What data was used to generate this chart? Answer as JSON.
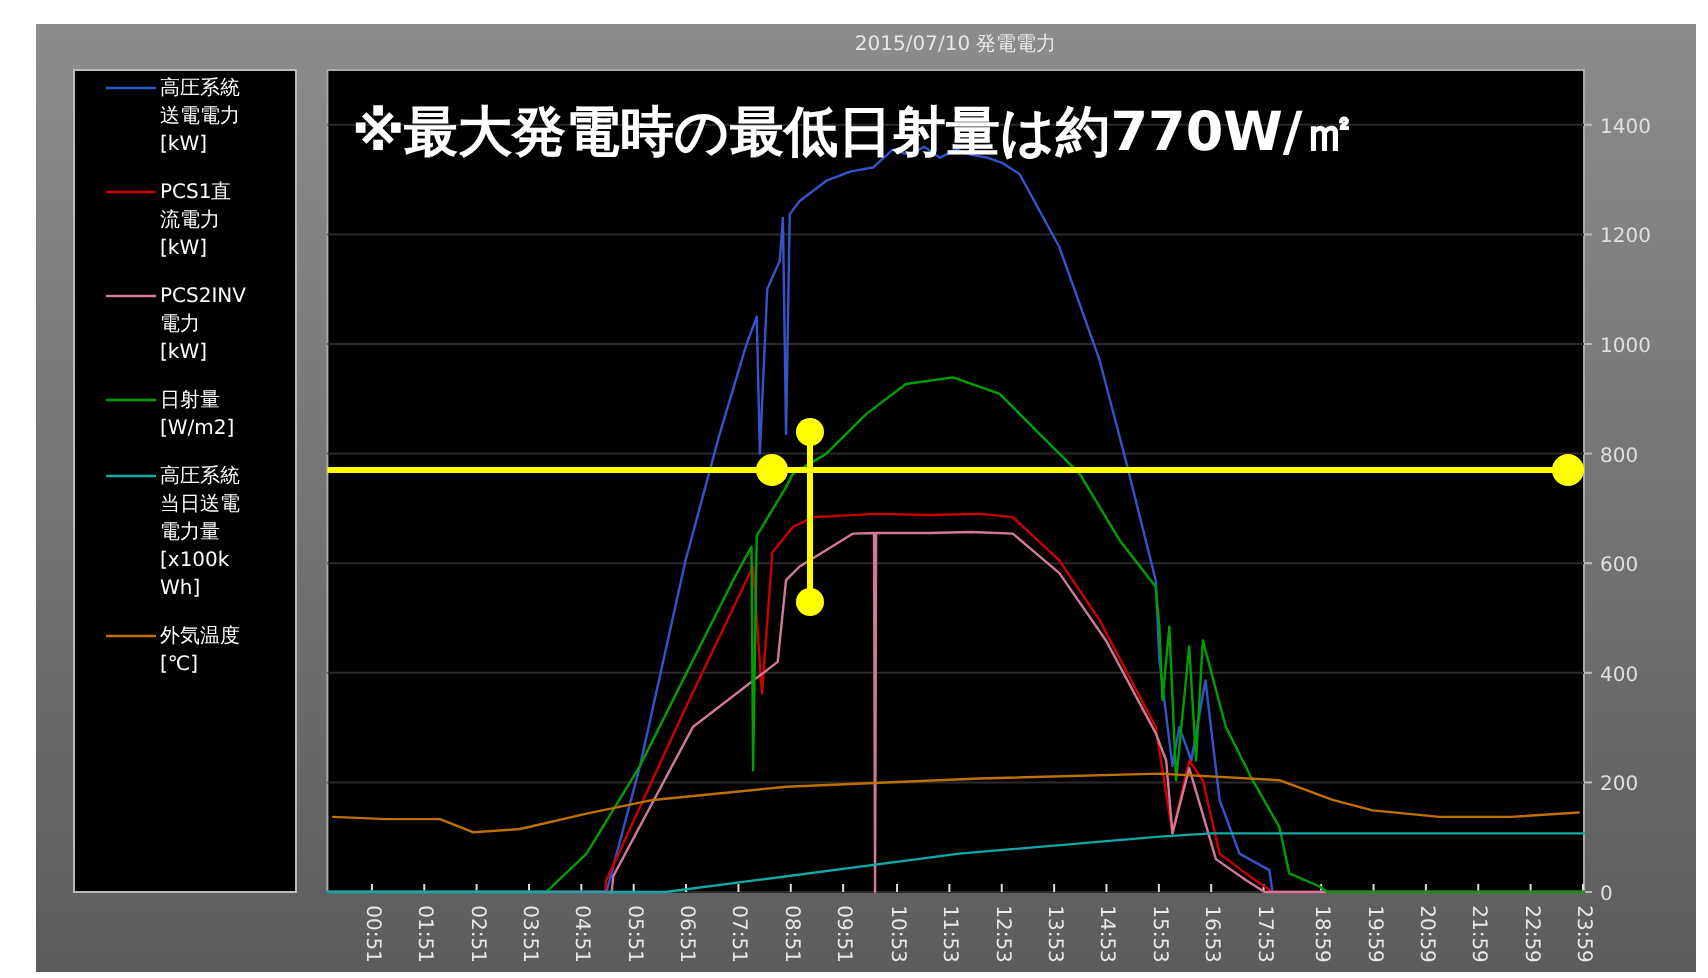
{
  "chart_data": {
    "type": "line",
    "title": "2015/07/10 発電電力",
    "annotations": [
      "※最大発電時の最低日射量は約770W/㎡"
    ],
    "xlim": [
      0,
      24
    ],
    "xticks": [
      {
        "value": 0.85,
        "label": "00:51"
      },
      {
        "value": 1.85,
        "label": "01:51"
      },
      {
        "value": 2.85,
        "label": "02:51"
      },
      {
        "value": 3.85,
        "label": "03:51"
      },
      {
        "value": 4.85,
        "label": "04:51"
      },
      {
        "value": 5.85,
        "label": "05:51"
      },
      {
        "value": 6.85,
        "label": "06:51"
      },
      {
        "value": 7.85,
        "label": "07:51"
      },
      {
        "value": 8.85,
        "label": "08:51"
      },
      {
        "value": 9.85,
        "label": "09:51"
      },
      {
        "value": 10.88,
        "label": "10:53"
      },
      {
        "value": 11.88,
        "label": "11:53"
      },
      {
        "value": 12.88,
        "label": "12:53"
      },
      {
        "value": 13.88,
        "label": "13:53"
      },
      {
        "value": 14.88,
        "label": "14:53"
      },
      {
        "value": 15.88,
        "label": "15:53"
      },
      {
        "value": 16.88,
        "label": "16:53"
      },
      {
        "value": 17.88,
        "label": "17:53"
      },
      {
        "value": 18.98,
        "label": "18:59"
      },
      {
        "value": 19.98,
        "label": "19:59"
      },
      {
        "value": 20.98,
        "label": "20:59"
      },
      {
        "value": 21.98,
        "label": "21:59"
      },
      {
        "value": 22.98,
        "label": "22:59"
      },
      {
        "value": 23.98,
        "label": "23:59"
      }
    ],
    "ylim": [
      0,
      1500
    ],
    "yticks": [
      0,
      200,
      400,
      600,
      800,
      1000,
      1200,
      1400
    ],
    "grid": "y",
    "legend": "left",
    "ref_lines": [
      {
        "axis": "y",
        "value": 770,
        "color": "#ffff00"
      }
    ],
    "series": [
      {
        "name": "高圧系統送電電力[kW]",
        "color": "#3355cc",
        "x": [
          0,
          5.33,
          5.97,
          6.84,
          7.49,
          7.99,
          8.2,
          8.26,
          8.4,
          8.64,
          8.7,
          8.76,
          8.83,
          9.02,
          9.53,
          10.0,
          10.42,
          10.8,
          11.1,
          11.4,
          11.7,
          12.0,
          12.3,
          12.6,
          12.9,
          13.22,
          13.98,
          14.75,
          15.25,
          15.82,
          15.89,
          16.14,
          16.27,
          16.5,
          16.77,
          17.04,
          17.42,
          17.99,
          18.05,
          24
        ],
        "values": [
          0,
          0,
          230,
          605,
          835,
          995,
          1050,
          800,
          1100,
          1152,
          1230,
          836,
          1237,
          1261,
          1298,
          1315,
          1322,
          1355,
          1345,
          1360,
          1340,
          1355,
          1345,
          1340,
          1330,
          1310,
          1177,
          970,
          787,
          569,
          423,
          230,
          301,
          240,
          386,
          168,
          70,
          40,
          0,
          0
        ]
      },
      {
        "name": "PCS1直流電力[kW]",
        "color": "#cc0000",
        "x": [
          0,
          5.3,
          5.33,
          6.85,
          8.13,
          8.3,
          8.5,
          8.89,
          9.27,
          10.5,
          11.5,
          12.5,
          13.09,
          13.98,
          14.75,
          15.82,
          16.14,
          16.46,
          16.72,
          17.04,
          17.54,
          18.05,
          24
        ],
        "values": [
          0,
          0,
          22,
          338,
          594,
          362,
          620,
          666,
          684,
          690,
          688,
          690,
          684,
          605,
          496,
          301,
          107,
          240,
          204,
          70,
          34,
          0,
          0
        ]
      },
      {
        "name": "PCS2INV電力[kW]",
        "color": "#d07a98",
        "x": [
          0,
          5.43,
          5.46,
          6.98,
          8.6,
          8.76,
          9.02,
          10.04,
          10.44,
          10.46,
          10.48,
          11.5,
          12.3,
          13.09,
          13.98,
          14.87,
          15.82,
          16.02,
          16.14,
          16.46,
          16.97,
          17.54,
          17.9,
          24
        ],
        "values": [
          0,
          0,
          29,
          301,
          420,
          569,
          594,
          654,
          655,
          0,
          655,
          655,
          657,
          654,
          582,
          459,
          290,
          240,
          107,
          226,
          60,
          22,
          0,
          0
        ]
      },
      {
        "name": "日射量[W/m2]",
        "color": "#00a000",
        "x": [
          0,
          4.18,
          4.95,
          5.97,
          6.85,
          7.75,
          8.1,
          8.13,
          8.2,
          8.76,
          8.89,
          9.53,
          10.29,
          11.05,
          11.95,
          12.84,
          13.6,
          14.37,
          15.13,
          15.82,
          15.89,
          15.95,
          16.08,
          16.21,
          16.46,
          16.59,
          16.72,
          17.16,
          17.67,
          18.18,
          18.37,
          18.95,
          19.1,
          24
        ],
        "values": [
          0,
          0,
          70,
          230,
          398,
          569,
          630,
          222,
          650,
          739,
          763,
          800,
          872,
          927,
          939,
          909,
          836,
          763,
          642,
          557,
          484,
          350,
          484,
          204,
          448,
          240,
          459,
          301,
          204,
          119,
          34,
          10,
          0,
          0
        ]
      },
      {
        "name": "高圧系統当日送電電力量[x100kWh]",
        "color": "#12a8a8",
        "x": [
          0,
          6.46,
          12.07,
          15.89,
          16.9,
          24
        ],
        "values": [
          0,
          0,
          70,
          101,
          107,
          107
        ]
      },
      {
        "name": "外気温度[℃]",
        "color": "#c07000",
        "x": [
          0.11,
          1.13,
          2.15,
          2.79,
          3.68,
          4.95,
          6.22,
          8.76,
          12.46,
          15.89,
          18.18,
          19.2,
          19.96,
          21.24,
          22.6,
          23.9
        ],
        "values": [
          137,
          133,
          133,
          109,
          115,
          143,
          168,
          192,
          207,
          216,
          204,
          168,
          149,
          137,
          137,
          145
        ]
      }
    ]
  }
}
